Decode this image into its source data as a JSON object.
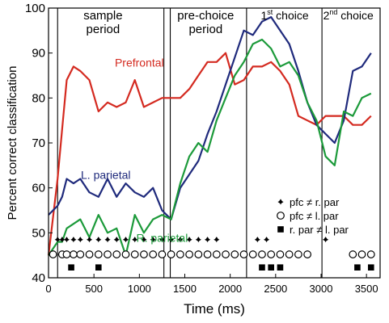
{
  "chart_data": {
    "type": "line",
    "xlabel": "Time (ms)",
    "ylabel": "Percent correct classification",
    "xlim": [
      0,
      3650
    ],
    "ylim": [
      40,
      100
    ],
    "x_ticks": [
      0,
      500,
      1000,
      1500,
      2000,
      2500,
      3000,
      3500
    ],
    "y_ticks": [
      40,
      50,
      60,
      70,
      80,
      90,
      100
    ],
    "grid": false,
    "period_lines": [
      100,
      1270,
      1340,
      2180,
      3010
    ],
    "periods": [
      {
        "lines": [
          "sample",
          "period"
        ],
        "x": 600
      },
      {
        "lines": [
          "pre-choice",
          "period"
        ],
        "x": 1730
      },
      {
        "lines": [
          "1",
          "st",
          " choice"
        ],
        "x": 2600,
        "superscript": true
      },
      {
        "lines": [
          "2",
          "nd",
          " choice"
        ],
        "x": 3300,
        "superscript": true
      }
    ],
    "series": [
      {
        "name": "Prefrontal",
        "color": "#d42a20",
        "label_at": [
          1000,
          87
        ],
        "x": [
          0,
          100,
          150,
          200,
          275,
          350,
          450,
          550,
          650,
          750,
          850,
          950,
          1050,
          1150,
          1250,
          1350,
          1450,
          1550,
          1650,
          1750,
          1850,
          1950,
          2050,
          2150,
          2250,
          2350,
          2450,
          2550,
          2650,
          2750,
          2850,
          2950,
          3050,
          3150,
          3250,
          3350,
          3450,
          3550
        ],
        "y": [
          45,
          62,
          73,
          84,
          87,
          86,
          84,
          77,
          79,
          78,
          79,
          84,
          78,
          79,
          80,
          80,
          80,
          82,
          85,
          88,
          88,
          90,
          83,
          84,
          87,
          87,
          88,
          86,
          83,
          76,
          75,
          74,
          76,
          76,
          76,
          74,
          74,
          76
        ]
      },
      {
        "name": "L. parietal",
        "color": "#1f2a7c",
        "label_at": [
          630,
          62
        ],
        "x": [
          0,
          100,
          150,
          200,
          275,
          350,
          450,
          550,
          650,
          750,
          850,
          950,
          1050,
          1150,
          1250,
          1350,
          1450,
          1550,
          1650,
          1750,
          1850,
          1950,
          2050,
          2150,
          2250,
          2350,
          2450,
          2550,
          2650,
          2750,
          2850,
          2950,
          3050,
          3150,
          3250,
          3350,
          3450,
          3550
        ],
        "y": [
          54,
          56,
          58,
          62,
          61,
          62,
          59,
          58,
          62,
          58,
          61,
          59,
          58,
          60,
          55,
          53,
          60,
          63,
          66,
          72,
          77,
          83,
          89,
          95,
          94,
          97,
          98,
          95,
          92,
          86,
          79,
          74,
          72,
          70,
          75,
          86,
          87,
          90
        ]
      },
      {
        "name": "R. parietal",
        "color": "#1c9a3a",
        "label_at": [
          1250,
          48
        ],
        "x": [
          0,
          100,
          150,
          200,
          275,
          350,
          450,
          550,
          650,
          750,
          850,
          950,
          1050,
          1150,
          1250,
          1350,
          1450,
          1550,
          1650,
          1750,
          1850,
          1950,
          2050,
          2150,
          2250,
          2350,
          2450,
          2550,
          2650,
          2750,
          2850,
          2950,
          3050,
          3150,
          3250,
          3350,
          3450,
          3550
        ],
        "y": [
          45,
          48,
          48,
          51,
          52,
          53,
          49,
          54,
          50,
          51,
          45,
          54,
          50,
          53,
          54,
          53,
          61,
          67,
          70,
          68,
          75,
          80,
          85,
          88,
          92,
          93,
          91,
          87,
          88,
          85,
          79,
          75,
          67,
          65,
          77,
          76,
          80,
          81
        ]
      }
    ],
    "legend": {
      "placement": "right",
      "entries": [
        {
          "symbol": "diamond",
          "label": "pfc ≠ r. par"
        },
        {
          "symbol": "circle",
          "label": "pfc ≠ l. par"
        },
        {
          "symbol": "square",
          "label": "r. par ≠ l. par"
        }
      ]
    },
    "significance": {
      "diamond": [
        100,
        150,
        200,
        275,
        350,
        450,
        550,
        650,
        750,
        850,
        950,
        1050,
        1150,
        1250,
        1350,
        1450,
        1550,
        1650,
        1750,
        1850,
        2300,
        2400,
        3050
      ],
      "circle": [
        50,
        150,
        200,
        275,
        350,
        450,
        550,
        650,
        750,
        850,
        950,
        1050,
        1150,
        1250,
        1350,
        1450,
        1550,
        1650,
        1750,
        1850,
        1950,
        2050,
        2150,
        2250,
        2350,
        2450,
        2550,
        2650,
        2750,
        2850,
        3350,
        3450,
        3550
      ],
      "square": [
        250,
        550,
        2350,
        2450,
        2550,
        3400,
        3550
      ]
    },
    "significance_y": {
      "diamond": 48.5,
      "circle": 45.2,
      "square": 42.3
    }
  }
}
